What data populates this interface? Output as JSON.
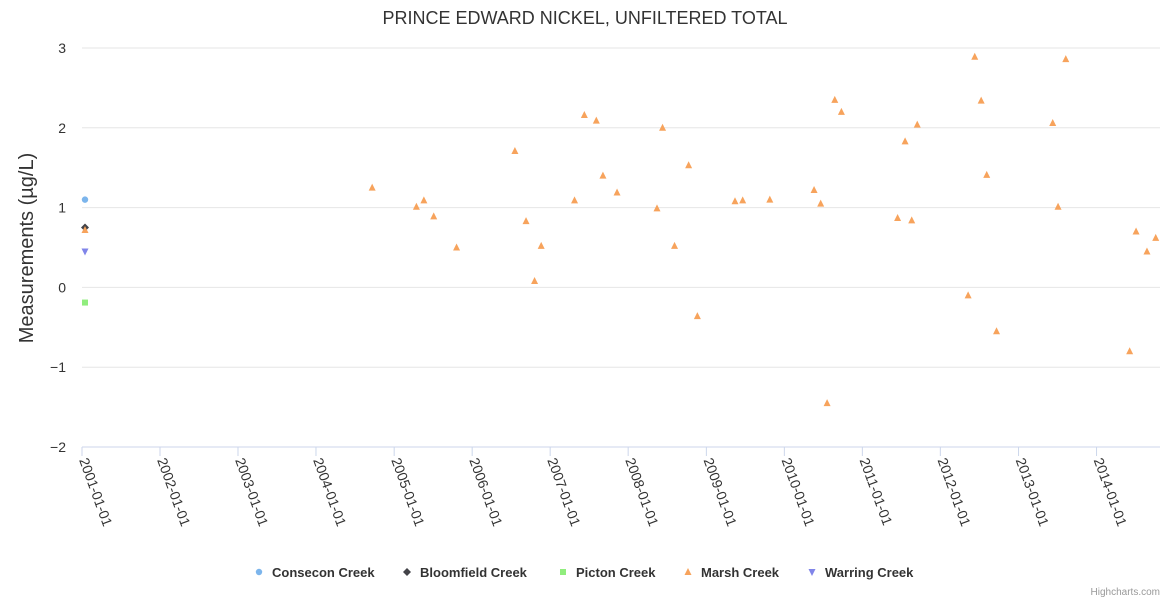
{
  "chart_data": {
    "type": "scatter",
    "title": "PRINCE EDWARD NICKEL, UNFILTERED TOTAL",
    "xlabel": "",
    "ylabel": "Measurements (µg/L)",
    "xlim": [
      "2001-01-01",
      "2014-10-25"
    ],
    "ylim": [
      -2,
      3
    ],
    "yticks": [
      3,
      2,
      1,
      0,
      -1,
      -2
    ],
    "ytick_labels": [
      "3",
      "2",
      "1",
      "0",
      "−1",
      "−2"
    ],
    "xticks": [
      "2001-01-01",
      "2002-01-01",
      "2003-01-01",
      "2004-01-01",
      "2005-01-01",
      "2006-01-01",
      "2007-01-01",
      "2008-01-01",
      "2009-01-01",
      "2010-01-01",
      "2011-01-01",
      "2012-01-01",
      "2013-01-01",
      "2014-01-01"
    ],
    "grid": true,
    "legend_position": "bottom",
    "credits": "Highcharts.com",
    "series": [
      {
        "name": "Consecon Creek",
        "color": "#7cb5ec",
        "marker": "circle",
        "points": [
          [
            "2001-01-15",
            1.1
          ]
        ]
      },
      {
        "name": "Bloomfield Creek",
        "color": "#434348",
        "marker": "diamond",
        "points": [
          [
            "2001-01-15",
            0.75
          ]
        ]
      },
      {
        "name": "Picton Creek",
        "color": "#90ed7d",
        "marker": "square",
        "points": [
          [
            "2001-01-15",
            -0.19
          ]
        ]
      },
      {
        "name": "Marsh Creek",
        "color": "#f7a35c",
        "marker": "triangle",
        "points": [
          [
            "2001-01-15",
            0.72
          ],
          [
            "2004-09-20",
            1.25
          ],
          [
            "2005-04-15",
            1.01
          ],
          [
            "2005-05-20",
            1.09
          ],
          [
            "2005-07-05",
            0.89
          ],
          [
            "2005-10-20",
            0.5
          ],
          [
            "2006-07-20",
            1.71
          ],
          [
            "2006-09-10",
            0.83
          ],
          [
            "2006-10-20",
            0.08
          ],
          [
            "2006-11-20",
            0.52
          ],
          [
            "2007-04-25",
            1.09
          ],
          [
            "2007-06-10",
            2.16
          ],
          [
            "2007-08-05",
            2.09
          ],
          [
            "2007-09-05",
            1.4
          ],
          [
            "2007-11-10",
            1.19
          ],
          [
            "2008-05-15",
            0.99
          ],
          [
            "2008-06-10",
            2.0
          ],
          [
            "2008-08-05",
            0.52
          ],
          [
            "2008-10-10",
            1.53
          ],
          [
            "2008-11-20",
            -0.36
          ],
          [
            "2009-05-15",
            1.08
          ],
          [
            "2009-06-20",
            1.09
          ],
          [
            "2009-10-25",
            1.1
          ],
          [
            "2010-05-20",
            1.22
          ],
          [
            "2010-06-20",
            1.05
          ],
          [
            "2010-07-20",
            -1.45
          ],
          [
            "2010-08-25",
            2.35
          ],
          [
            "2010-09-25",
            2.2
          ],
          [
            "2011-06-15",
            0.87
          ],
          [
            "2011-07-20",
            1.83
          ],
          [
            "2011-08-20",
            0.84
          ],
          [
            "2011-09-15",
            2.04
          ],
          [
            "2012-05-10",
            -0.1
          ],
          [
            "2012-06-10",
            2.89
          ],
          [
            "2012-07-10",
            2.34
          ],
          [
            "2012-08-05",
            1.41
          ],
          [
            "2012-09-20",
            -0.55
          ],
          [
            "2013-06-10",
            2.06
          ],
          [
            "2013-07-05",
            1.01
          ],
          [
            "2013-08-10",
            2.86
          ],
          [
            "2014-06-05",
            -0.8
          ],
          [
            "2014-07-05",
            0.7
          ],
          [
            "2014-08-25",
            0.45
          ],
          [
            "2014-10-05",
            0.62
          ]
        ]
      },
      {
        "name": "Warring Creek",
        "color": "#8085e9",
        "marker": "triangle-down",
        "points": [
          [
            "2001-01-15",
            0.45
          ]
        ]
      }
    ]
  }
}
